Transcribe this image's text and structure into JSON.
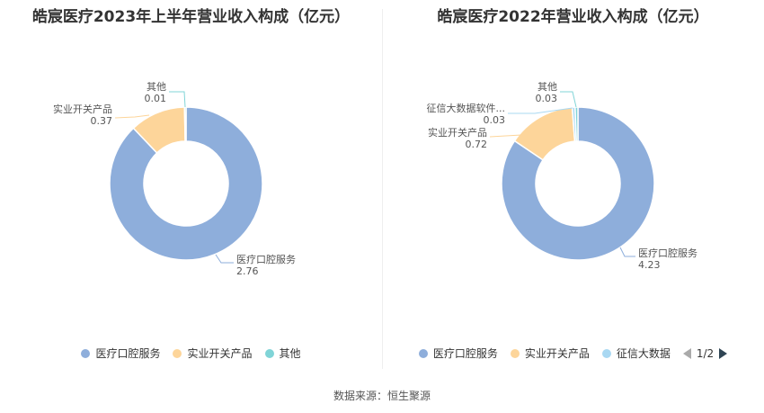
{
  "source": "数据来源：恒生聚源",
  "chart_data": [
    {
      "type": "pie",
      "title": "皓宸医疗2023年上半年营业收入构成（亿元）",
      "categories": [
        "医疗口腔服务",
        "实业开关产品",
        "其他"
      ],
      "values": [
        2.76,
        0.37,
        0.01
      ],
      "value_labels": [
        "2.76",
        "0.37",
        "0.01"
      ],
      "colors": [
        "#8eaedb",
        "#fdd59a",
        "#80d4d7"
      ],
      "legend": {
        "position": "bottom",
        "items": [
          "医疗口腔服务",
          "实业开关产品",
          "其他"
        ]
      }
    },
    {
      "type": "pie",
      "title": "皓宸医疗2022年营业收入构成（亿元）",
      "categories": [
        "医疗口腔服务",
        "实业开关产品",
        "征信大数据软件...",
        "其他"
      ],
      "values": [
        4.23,
        0.72,
        0.03,
        0.03
      ],
      "value_labels": [
        "4.23",
        "0.72",
        "0.03",
        "0.03"
      ],
      "colors": [
        "#8eaedb",
        "#fdd59a",
        "#a9d8f2",
        "#80d4d7"
      ],
      "legend": {
        "position": "bottom",
        "items": [
          "医疗口腔服务",
          "实业开关产品",
          "征信大数据"
        ],
        "page": "1/2"
      }
    }
  ]
}
